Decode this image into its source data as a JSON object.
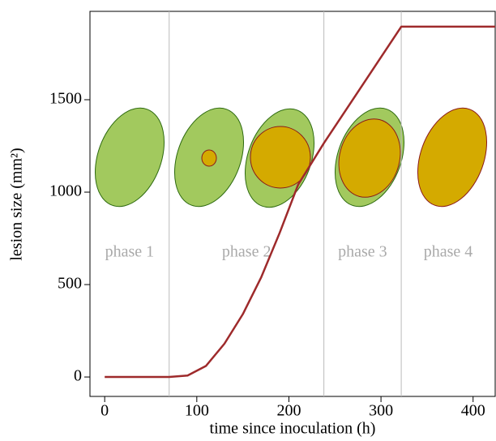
{
  "chart_data": {
    "type": "line",
    "x_label": "time since inoculation (h)",
    "y_label": "lesion size (mm²)",
    "x": [
      0,
      70,
      90,
      110,
      130,
      150,
      170,
      190,
      210,
      238,
      322,
      424
    ],
    "series": [
      {
        "color": "#9e2a2b",
        "values": [
          0,
          0,
          8,
          60,
          180,
          340,
          540,
          780,
          1040,
          1265,
          1895,
          1895
        ]
      }
    ],
    "xlim": [
      -16,
      424
    ],
    "ylim": [
      -105,
      1978
    ],
    "xticks": [
      0,
      100,
      200,
      300,
      400
    ],
    "yticks": [
      0,
      500,
      1000,
      1500
    ],
    "vlines": [
      70,
      238,
      322
    ],
    "annotations": [
      "phase 1",
      "phase 2",
      "phase 3",
      "phase 4"
    ]
  }
}
